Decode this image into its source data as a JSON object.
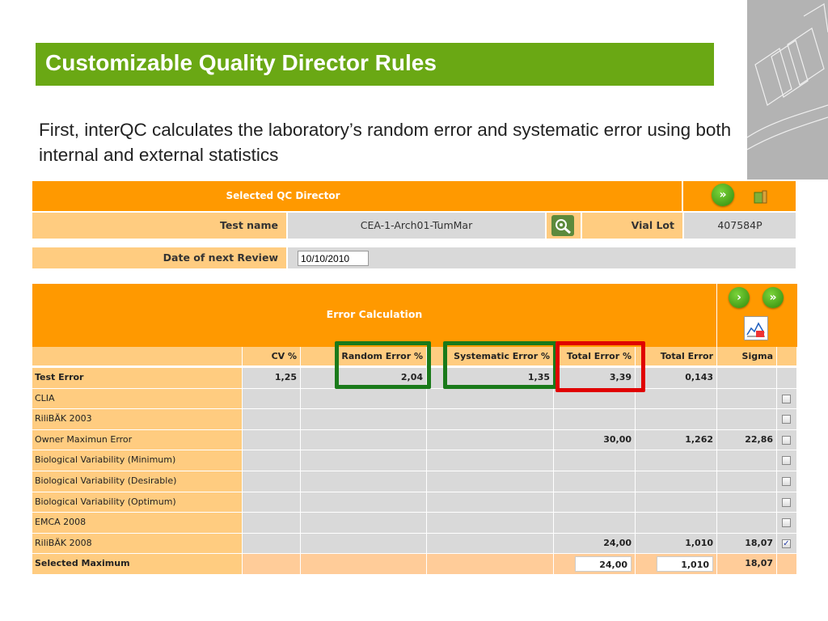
{
  "slide": {
    "title": "Customizable Quality Director Rules",
    "subtitle": "First, interQC calculates the laboratory’s random error and systematic error using both internal and external statistics"
  },
  "qc_director": {
    "header": "Selected QC Director",
    "test_name_label": "Test name",
    "test_name_value": "CEA-1-Arch01-TumMar",
    "vial_lot_label": "Vial Lot",
    "vial_lot_value": "407584P",
    "review_label": "Date of next Review",
    "review_value": "10/10/2010",
    "icons": [
      "fast-forward-icon",
      "exit-icon",
      "settings-search-icon"
    ]
  },
  "error_calc": {
    "header": "Error Calculation",
    "columns": [
      "CV %",
      "Random Error %",
      "Systematic Error %",
      "Total Error %",
      "Total Error",
      "Sigma"
    ],
    "rows": [
      {
        "label": "Test Error",
        "bold": true,
        "cv": "1,25",
        "random": "2,04",
        "systematic": "1,35",
        "total_pct": "3,39",
        "total": "0,143",
        "sigma": "",
        "checkbox": null
      },
      {
        "label": "CLIA",
        "cv": "",
        "random": "",
        "systematic": "",
        "total_pct": "",
        "total": "",
        "sigma": "",
        "checkbox": false
      },
      {
        "label": "RiliBÄK 2003",
        "cv": "",
        "random": "",
        "systematic": "",
        "total_pct": "",
        "total": "",
        "sigma": "",
        "checkbox": false
      },
      {
        "label": "Owner Maximun Error",
        "cv": "",
        "random": "",
        "systematic": "",
        "total_pct": "30,00",
        "total": "1,262",
        "sigma": "22,86",
        "checkbox": false
      },
      {
        "label": "Biological Variability (Minimum)",
        "cv": "",
        "random": "",
        "systematic": "",
        "total_pct": "",
        "total": "",
        "sigma": "",
        "checkbox": false
      },
      {
        "label": "Biological Variability (Desirable)",
        "cv": "",
        "random": "",
        "systematic": "",
        "total_pct": "",
        "total": "",
        "sigma": "",
        "checkbox": false
      },
      {
        "label": "Biological Variability (Optimum)",
        "cv": "",
        "random": "",
        "systematic": "",
        "total_pct": "",
        "total": "",
        "sigma": "",
        "checkbox": false
      },
      {
        "label": "EMCA 2008",
        "cv": "",
        "random": "",
        "systematic": "",
        "total_pct": "",
        "total": "",
        "sigma": "",
        "checkbox": false
      },
      {
        "label": "RiliBÄK 2008",
        "cv": "",
        "random": "",
        "systematic": "",
        "total_pct": "24,00",
        "total": "1,010",
        "sigma": "18,07",
        "checkbox": true
      }
    ],
    "selected_row": {
      "label": "Selected Maximum",
      "total_pct": "24,00",
      "total": "1,010",
      "sigma": "18,07"
    },
    "icons": [
      "next-icon",
      "fast-forward-icon",
      "chart-icon"
    ],
    "highlights": {
      "random_color": "#1a7a1a",
      "systematic_color": "#1a7a1a",
      "total_color": "#e00000"
    }
  },
  "colors": {
    "accent_green": "#6aa814",
    "orange": "#ff9900",
    "light_orange": "#ffcc80"
  }
}
